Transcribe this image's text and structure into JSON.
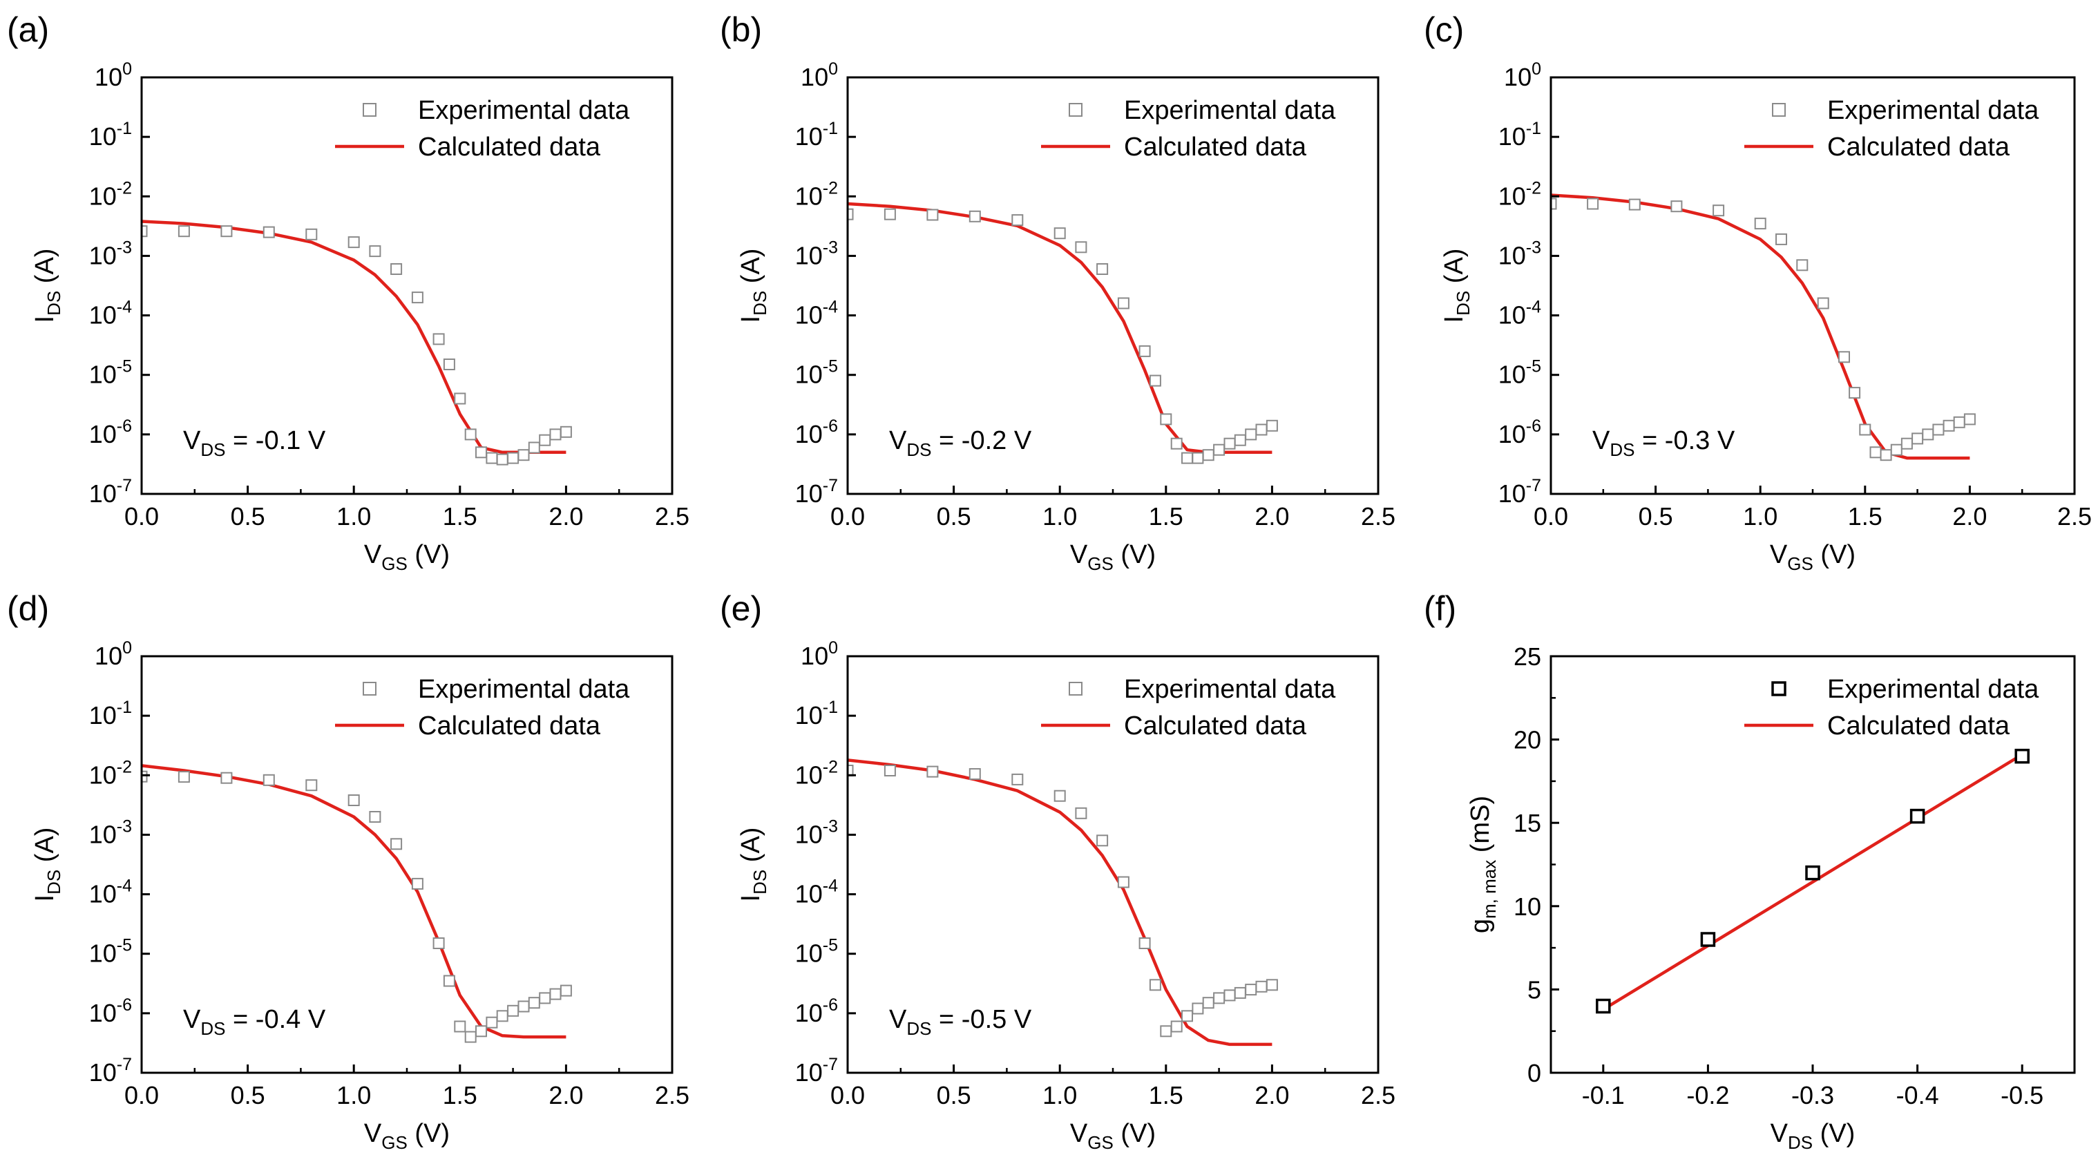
{
  "colors": {
    "experimental": "#8a8a8a",
    "experimental_f": "#000000",
    "calculated": "#e0211b",
    "axis": "#000000"
  },
  "chart_data": [
    {
      "panel": "(a)",
      "type": "scatter",
      "yscale": "log",
      "xlabel": {
        "main": "V",
        "sub": "GS",
        "tail": " (V)"
      },
      "ylabel": {
        "main": "I",
        "sub": "DS",
        "tail": " (A)"
      },
      "xlim": [
        0,
        2.5
      ],
      "ylim": [
        1e-07,
        1
      ],
      "xticks": [
        "0.0",
        "0.5",
        "1.0",
        "1.5",
        "2.0",
        "2.5"
      ],
      "yticks": [
        {
          "base": "10",
          "exp": "0"
        },
        {
          "base": "10",
          "exp": "-1"
        },
        {
          "base": "10",
          "exp": "-2"
        },
        {
          "base": "10",
          "exp": "-3"
        },
        {
          "base": "10",
          "exp": "-4"
        },
        {
          "base": "10",
          "exp": "-5"
        },
        {
          "base": "10",
          "exp": "-6"
        },
        {
          "base": "10",
          "exp": "-7"
        }
      ],
      "legend": {
        "experimental": "Experimental data",
        "calculated": "Calculated data",
        "position": "top-right"
      },
      "annotation": {
        "main": "V",
        "sub": "DS",
        "tail": " = -0.1 V"
      },
      "series": [
        {
          "name": "Calculated data",
          "style": "line",
          "x": [
            0,
            0.2,
            0.4,
            0.6,
            0.8,
            1.0,
            1.1,
            1.2,
            1.3,
            1.4,
            1.5,
            1.6,
            1.7,
            1.8,
            1.9,
            2.0
          ],
          "y": [
            0.0038,
            0.0035,
            0.003,
            0.0024,
            0.0017,
            0.00085,
            0.00048,
            0.00021,
            7e-05,
            1.4e-05,
            2.2e-06,
            6e-07,
            5e-07,
            5e-07,
            5e-07,
            5e-07
          ]
        },
        {
          "name": "Experimental data",
          "style": "marker",
          "x": [
            0,
            0.2,
            0.4,
            0.6,
            0.8,
            1.0,
            1.1,
            1.2,
            1.3,
            1.4,
            1.45,
            1.5,
            1.55,
            1.6,
            1.65,
            1.7,
            1.75,
            1.8,
            1.85,
            1.9,
            1.95,
            2.0
          ],
          "y": [
            0.0026,
            0.0026,
            0.0026,
            0.0025,
            0.0023,
            0.0017,
            0.0012,
            0.0006,
            0.0002,
            4e-05,
            1.5e-05,
            4e-06,
            1e-06,
            5e-07,
            4e-07,
            3.8e-07,
            4e-07,
            4.5e-07,
            6e-07,
            8e-07,
            1e-06,
            1.1e-06
          ]
        }
      ]
    },
    {
      "panel": "(b)",
      "type": "scatter",
      "yscale": "log",
      "xlabel": {
        "main": "V",
        "sub": "GS",
        "tail": " (V)"
      },
      "ylabel": {
        "main": "I",
        "sub": "DS",
        "tail": " (A)"
      },
      "xlim": [
        0,
        2.5
      ],
      "ylim": [
        1e-07,
        1
      ],
      "xticks": [
        "0.0",
        "0.5",
        "1.0",
        "1.5",
        "2.0",
        "2.5"
      ],
      "yticks": [
        {
          "base": "10",
          "exp": "0"
        },
        {
          "base": "10",
          "exp": "-1"
        },
        {
          "base": "10",
          "exp": "-2"
        },
        {
          "base": "10",
          "exp": "-3"
        },
        {
          "base": "10",
          "exp": "-4"
        },
        {
          "base": "10",
          "exp": "-5"
        },
        {
          "base": "10",
          "exp": "-6"
        },
        {
          "base": "10",
          "exp": "-7"
        }
      ],
      "legend": {
        "experimental": "Experimental data",
        "calculated": "Calculated data",
        "position": "top-right"
      },
      "annotation": {
        "main": "V",
        "sub": "DS",
        "tail": " = -0.2 V"
      },
      "series": [
        {
          "name": "Calculated data",
          "style": "line",
          "x": [
            0,
            0.2,
            0.4,
            0.6,
            0.8,
            1.0,
            1.1,
            1.2,
            1.3,
            1.4,
            1.5,
            1.6,
            1.7,
            1.8,
            1.9,
            2.0
          ],
          "y": [
            0.0075,
            0.0068,
            0.0058,
            0.0045,
            0.0032,
            0.0015,
            0.00078,
            0.0003,
            8e-05,
            1.2e-05,
            1.5e-06,
            5.5e-07,
            5e-07,
            5e-07,
            5e-07,
            5e-07
          ]
        },
        {
          "name": "Experimental data",
          "style": "marker",
          "x": [
            0,
            0.2,
            0.4,
            0.6,
            0.8,
            1.0,
            1.1,
            1.2,
            1.3,
            1.4,
            1.45,
            1.5,
            1.55,
            1.6,
            1.65,
            1.7,
            1.75,
            1.8,
            1.85,
            1.9,
            1.95,
            2.0
          ],
          "y": [
            0.005,
            0.005,
            0.0049,
            0.0046,
            0.004,
            0.0024,
            0.0014,
            0.0006,
            0.00016,
            2.5e-05,
            8e-06,
            1.8e-06,
            7e-07,
            4e-07,
            4e-07,
            4.5e-07,
            5.5e-07,
            7e-07,
            8e-07,
            1e-06,
            1.2e-06,
            1.4e-06
          ]
        }
      ]
    },
    {
      "panel": "(c)",
      "type": "scatter",
      "yscale": "log",
      "xlabel": {
        "main": "V",
        "sub": "GS",
        "tail": " (V)"
      },
      "ylabel": {
        "main": "I",
        "sub": "DS",
        "tail": " (A)"
      },
      "xlim": [
        0,
        2.5
      ],
      "ylim": [
        1e-07,
        1
      ],
      "xticks": [
        "0.0",
        "0.5",
        "1.0",
        "1.5",
        "2.0",
        "2.5"
      ],
      "yticks": [
        {
          "base": "10",
          "exp": "0"
        },
        {
          "base": "10",
          "exp": "-1"
        },
        {
          "base": "10",
          "exp": "-2"
        },
        {
          "base": "10",
          "exp": "-3"
        },
        {
          "base": "10",
          "exp": "-4"
        },
        {
          "base": "10",
          "exp": "-5"
        },
        {
          "base": "10",
          "exp": "-6"
        },
        {
          "base": "10",
          "exp": "-7"
        }
      ],
      "legend": {
        "experimental": "Experimental data",
        "calculated": "Calculated data",
        "position": "top-right"
      },
      "annotation": {
        "main": "V",
        "sub": "DS",
        "tail": " = -0.3 V"
      },
      "series": [
        {
          "name": "Calculated data",
          "style": "line",
          "x": [
            0,
            0.2,
            0.4,
            0.6,
            0.8,
            1.0,
            1.1,
            1.2,
            1.3,
            1.4,
            1.5,
            1.6,
            1.7,
            1.8,
            1.9,
            2.0
          ],
          "y": [
            0.0105,
            0.0095,
            0.008,
            0.0062,
            0.0042,
            0.0019,
            0.00095,
            0.00035,
            9e-05,
            1.2e-05,
            1.5e-06,
            5e-07,
            4e-07,
            4e-07,
            4e-07,
            4e-07
          ]
        },
        {
          "name": "Experimental data",
          "style": "marker",
          "x": [
            0,
            0.2,
            0.4,
            0.6,
            0.8,
            1.0,
            1.1,
            1.2,
            1.3,
            1.4,
            1.45,
            1.5,
            1.55,
            1.6,
            1.65,
            1.7,
            1.75,
            1.8,
            1.85,
            1.9,
            1.95,
            2.0
          ],
          "y": [
            0.0075,
            0.0075,
            0.0073,
            0.0068,
            0.0058,
            0.0035,
            0.0019,
            0.0007,
            0.00016,
            2e-05,
            5e-06,
            1.2e-06,
            5e-07,
            4.5e-07,
            5.5e-07,
            7e-07,
            8.5e-07,
            1e-06,
            1.2e-06,
            1.4e-06,
            1.6e-06,
            1.8e-06
          ]
        }
      ]
    },
    {
      "panel": "(d)",
      "type": "scatter",
      "yscale": "log",
      "xlabel": {
        "main": "V",
        "sub": "GS",
        "tail": " (V)"
      },
      "ylabel": {
        "main": "I",
        "sub": "DS",
        "tail": " (A)"
      },
      "xlim": [
        0,
        2.5
      ],
      "ylim": [
        1e-07,
        1
      ],
      "xticks": [
        "0.0",
        "0.5",
        "1.0",
        "1.5",
        "2.0",
        "2.5"
      ],
      "yticks": [
        {
          "base": "10",
          "exp": "0"
        },
        {
          "base": "10",
          "exp": "-1"
        },
        {
          "base": "10",
          "exp": "-2"
        },
        {
          "base": "10",
          "exp": "-3"
        },
        {
          "base": "10",
          "exp": "-4"
        },
        {
          "base": "10",
          "exp": "-5"
        },
        {
          "base": "10",
          "exp": "-6"
        },
        {
          "base": "10",
          "exp": "-7"
        }
      ],
      "legend": {
        "experimental": "Experimental data",
        "calculated": "Calculated data",
        "position": "top-right"
      },
      "annotation": {
        "main": "V",
        "sub": "DS",
        "tail": " = -0.4 V"
      },
      "series": [
        {
          "name": "Calculated data",
          "style": "line",
          "x": [
            0,
            0.2,
            0.4,
            0.6,
            0.8,
            1.0,
            1.1,
            1.2,
            1.3,
            1.4,
            1.5,
            1.6,
            1.7,
            1.8,
            1.9,
            2.0
          ],
          "y": [
            0.0145,
            0.012,
            0.0095,
            0.007,
            0.0045,
            0.002,
            0.001,
            0.0004,
            0.00011,
            1.6e-05,
            2e-06,
            6e-07,
            4.2e-07,
            4e-07,
            4e-07,
            4e-07
          ]
        },
        {
          "name": "Experimental data",
          "style": "marker",
          "x": [
            0,
            0.2,
            0.4,
            0.6,
            0.8,
            1.0,
            1.1,
            1.2,
            1.3,
            1.4,
            1.45,
            1.5,
            1.55,
            1.6,
            1.65,
            1.7,
            1.75,
            1.8,
            1.85,
            1.9,
            1.95,
            2.0
          ],
          "y": [
            0.0095,
            0.0094,
            0.009,
            0.0083,
            0.0068,
            0.0038,
            0.002,
            0.0007,
            0.00015,
            1.5e-05,
            3.5e-06,
            6e-07,
            4e-07,
            5e-07,
            7e-07,
            9e-07,
            1.1e-06,
            1.3e-06,
            1.5e-06,
            1.8e-06,
            2.1e-06,
            2.4e-06
          ]
        }
      ]
    },
    {
      "panel": "(e)",
      "type": "scatter",
      "yscale": "log",
      "xlabel": {
        "main": "V",
        "sub": "GS",
        "tail": " (V)"
      },
      "ylabel": {
        "main": "I",
        "sub": "DS",
        "tail": " (A)"
      },
      "xlim": [
        0,
        2.5
      ],
      "ylim": [
        1e-07,
        1
      ],
      "xticks": [
        "0.0",
        "0.5",
        "1.0",
        "1.5",
        "2.0",
        "2.5"
      ],
      "yticks": [
        {
          "base": "10",
          "exp": "0"
        },
        {
          "base": "10",
          "exp": "-1"
        },
        {
          "base": "10",
          "exp": "-2"
        },
        {
          "base": "10",
          "exp": "-3"
        },
        {
          "base": "10",
          "exp": "-4"
        },
        {
          "base": "10",
          "exp": "-5"
        },
        {
          "base": "10",
          "exp": "-6"
        },
        {
          "base": "10",
          "exp": "-7"
        }
      ],
      "legend": {
        "experimental": "Experimental data",
        "calculated": "Calculated data",
        "position": "top-right"
      },
      "annotation": {
        "main": "V",
        "sub": "DS",
        "tail": " = -0.5 V"
      },
      "series": [
        {
          "name": "Calculated data",
          "style": "line",
          "x": [
            0,
            0.2,
            0.4,
            0.6,
            0.8,
            1.0,
            1.1,
            1.2,
            1.3,
            1.4,
            1.5,
            1.6,
            1.7,
            1.8,
            1.9,
            2.0
          ],
          "y": [
            0.018,
            0.015,
            0.012,
            0.0085,
            0.0055,
            0.0024,
            0.0012,
            0.00045,
            0.00012,
            1.8e-05,
            2.5e-06,
            6e-07,
            3.5e-07,
            3e-07,
            3e-07,
            3e-07
          ]
        },
        {
          "name": "Experimental data",
          "style": "marker",
          "x": [
            0,
            0.2,
            0.4,
            0.6,
            0.8,
            1.0,
            1.1,
            1.2,
            1.3,
            1.4,
            1.45,
            1.5,
            1.55,
            1.6,
            1.65,
            1.7,
            1.75,
            1.8,
            1.85,
            1.9,
            1.95,
            2.0
          ],
          "y": [
            0.012,
            0.012,
            0.0115,
            0.0105,
            0.0085,
            0.0045,
            0.0023,
            0.0008,
            0.00016,
            1.5e-05,
            3e-06,
            5e-07,
            6e-07,
            9e-07,
            1.2e-06,
            1.5e-06,
            1.8e-06,
            2e-06,
            2.2e-06,
            2.5e-06,
            2.8e-06,
            3e-06
          ]
        }
      ]
    },
    {
      "panel": "(f)",
      "type": "scatter",
      "yscale": "linear",
      "xlabel": {
        "main": "V",
        "sub": "DS",
        "tail": " (V)"
      },
      "ylabel": {
        "main": "g",
        "sub": "m, max",
        "tail": " (mS)"
      },
      "xlim": [
        -0.05,
        -0.55
      ],
      "ylim": [
        0,
        25
      ],
      "xticks": [
        "-0.1",
        "-0.2",
        "-0.3",
        "-0.4",
        "-0.5"
      ],
      "xtick_values": [
        -0.1,
        -0.2,
        -0.3,
        -0.4,
        -0.5
      ],
      "yticks": [
        "0",
        "5",
        "10",
        "15",
        "20",
        "25"
      ],
      "ytick_values": [
        0,
        5,
        10,
        15,
        20,
        25
      ],
      "legend": {
        "experimental": "Experimental data",
        "calculated": "Calculated data",
        "position": "top-right"
      },
      "series": [
        {
          "name": "Experimental data",
          "style": "marker",
          "x": [
            -0.1,
            -0.2,
            -0.3,
            -0.4,
            -0.5
          ],
          "y": [
            4.0,
            8.0,
            12.0,
            15.4,
            19.0
          ]
        },
        {
          "name": "Calculated data",
          "style": "line",
          "x": [
            -0.1,
            -0.5
          ],
          "y": [
            3.8,
            19.1
          ]
        }
      ]
    }
  ]
}
